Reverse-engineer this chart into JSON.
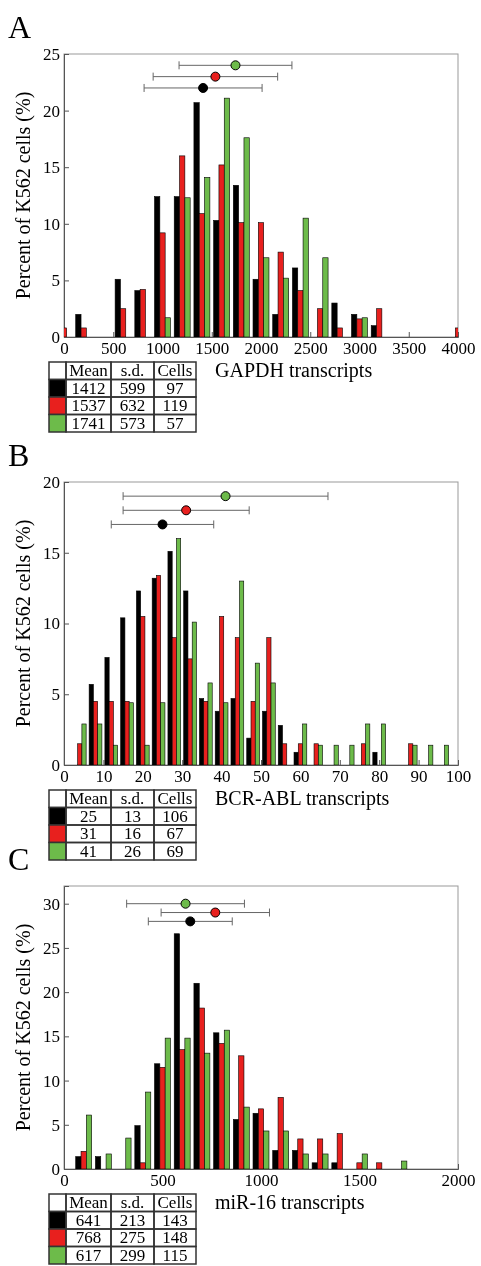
{
  "chart_data": [
    {
      "type": "bar",
      "title": "A",
      "xlabel": "GAPDH transcripts",
      "ylabel": "Percent of K562 cells (%)",
      "xlim": [
        0,
        4000
      ],
      "xticks": [
        0,
        500,
        1000,
        1500,
        2000,
        2500,
        3000,
        3500,
        4000
      ],
      "ylim": [
        0,
        25
      ],
      "yticks": [
        0,
        5,
        10,
        15,
        20,
        25
      ],
      "x": [
        0,
        200,
        400,
        600,
        800,
        1000,
        1200,
        1400,
        1600,
        1800,
        2000,
        2200,
        2400,
        2600,
        2800,
        3000,
        3200,
        3400,
        3600,
        3800,
        4000
      ],
      "series": [
        {
          "color": "#000000",
          "values": [
            null,
            2.0,
            null,
            5.1,
            4.1,
            12.4,
            12.4,
            20.7,
            10.3,
            13.4,
            5.1,
            2.0,
            6.1,
            null,
            3.0,
            2.0,
            1.0,
            null,
            null,
            null,
            null
          ]
        },
        {
          "color": "#e8201e",
          "values": [
            0.8,
            0.8,
            null,
            2.5,
            4.2,
            9.2,
            16.0,
            10.9,
            15.2,
            10.1,
            10.1,
            7.5,
            4.1,
            2.5,
            0.8,
            1.6,
            2.5,
            null,
            null,
            null,
            0.8
          ]
        },
        {
          "color": "#6dbb4a",
          "values": [
            null,
            null,
            null,
            null,
            null,
            1.7,
            12.3,
            14.1,
            21.1,
            17.6,
            7.0,
            5.2,
            10.5,
            7.0,
            null,
            1.7,
            null,
            null,
            null,
            null,
            null
          ]
        },
        {
          "type": "scatter",
          "color": "#000000",
          "x": [
            1412
          ],
          "values": [
            22
          ],
          "xerrors": [
            599
          ]
        },
        {
          "type": "scatter",
          "color": "#e8201e",
          "x": [
            1537
          ],
          "values": [
            23
          ],
          "xerrors": [
            632
          ]
        },
        {
          "type": "scatter",
          "color": "#6dbb4a",
          "x": [
            1741
          ],
          "values": [
            24
          ],
          "xerrors": [
            573
          ]
        }
      ],
      "annotations": [
        "Mean",
        "s.d.",
        "Cells",
        "1412",
        "599",
        "97",
        "1537",
        "632",
        "119",
        "1741",
        "573",
        "57"
      ]
    },
    {
      "type": "bar",
      "title": "B",
      "xlabel": "BCR-ABL transcripts",
      "ylabel": "Percent of K562 cells (%)",
      "xlim": [
        0,
        100
      ],
      "xticks": [
        0,
        10,
        20,
        30,
        40,
        50,
        60,
        70,
        80,
        90,
        100
      ],
      "ylim": [
        0,
        20
      ],
      "yticks": [
        0,
        5,
        10,
        15,
        20
      ],
      "x": [
        4,
        8,
        12,
        16,
        20,
        24,
        28,
        32,
        36,
        40,
        44,
        48,
        52,
        56,
        60,
        64,
        68,
        72,
        76,
        80,
        84,
        88,
        92,
        96
      ],
      "series": [
        {
          "color": "#000000",
          "values": [
            null,
            5.7,
            7.6,
            10.4,
            12.3,
            13.2,
            15.1,
            12.3,
            4.7,
            3.8,
            4.7,
            1.9,
            3.8,
            2.8,
            0.9,
            null,
            null,
            null,
            null,
            0.9,
            null,
            null,
            null,
            null
          ]
        },
        {
          "color": "#e8201e",
          "values": [
            1.5,
            4.5,
            4.5,
            4.5,
            10.5,
            13.4,
            9.0,
            7.5,
            4.5,
            10.5,
            9.0,
            4.5,
            9.0,
            1.5,
            1.5,
            1.5,
            null,
            null,
            1.5,
            null,
            null,
            1.5,
            null,
            null
          ]
        },
        {
          "color": "#6dbb4a",
          "values": [
            2.9,
            2.9,
            1.4,
            4.4,
            1.4,
            4.4,
            16.0,
            10.1,
            5.8,
            4.4,
            13.0,
            7.2,
            5.8,
            null,
            2.9,
            1.4,
            1.4,
            1.4,
            2.9,
            2.9,
            null,
            1.4,
            1.4,
            1.4
          ]
        },
        {
          "type": "scatter",
          "color": "#000000",
          "x": [
            25
          ],
          "values": [
            17
          ],
          "xerrors": [
            13
          ]
        },
        {
          "type": "scatter",
          "color": "#e8201e",
          "x": [
            31
          ],
          "values": [
            18
          ],
          "xerrors": [
            16
          ]
        },
        {
          "type": "scatter",
          "color": "#6dbb4a",
          "x": [
            41
          ],
          "values": [
            19
          ],
          "xerrors": [
            26
          ]
        }
      ],
      "annotations": [
        "Mean",
        "s.d.",
        "Cells",
        "25",
        "13",
        "106",
        "31",
        "16",
        "67",
        "41",
        "26",
        "69"
      ]
    },
    {
      "type": "bar",
      "title": "C",
      "xlabel": "miR-16 transcripts",
      "ylabel": "Percent of K562 cells (%)",
      "xlim": [
        0,
        2000
      ],
      "xticks": [
        0,
        500,
        1000,
        1500,
        2000
      ],
      "ylim": [
        0,
        32
      ],
      "yticks": [
        0,
        5,
        10,
        15,
        20,
        25,
        30
      ],
      "x": [
        100,
        200,
        300,
        400,
        500,
        600,
        700,
        800,
        900,
        1000,
        1100,
        1200,
        1300,
        1400,
        1500,
        1600,
        1700
      ],
      "series": [
        {
          "color": "#000000",
          "values": [
            1.4,
            1.4,
            null,
            4.9,
            11.9,
            26.6,
            21.0,
            15.4,
            5.6,
            6.3,
            2.1,
            2.1,
            0.7,
            0.7,
            null,
            null,
            null
          ]
        },
        {
          "color": "#e8201e",
          "values": [
            2.0,
            null,
            null,
            0.7,
            11.5,
            13.5,
            18.2,
            14.2,
            12.8,
            6.8,
            8.1,
            3.4,
            3.4,
            4.0,
            0.7,
            0.7,
            null
          ]
        },
        {
          "color": "#6dbb4a",
          "values": [
            6.1,
            1.7,
            3.5,
            8.7,
            14.8,
            14.8,
            13.1,
            15.7,
            7.0,
            4.3,
            4.3,
            1.7,
            1.7,
            null,
            1.7,
            null,
            0.9
          ]
        },
        {
          "type": "scatter",
          "color": "#000000",
          "x": [
            641
          ],
          "values": [
            28
          ],
          "xerrors": [
            213
          ]
        },
        {
          "type": "scatter",
          "color": "#e8201e",
          "x": [
            768
          ],
          "values": [
            29
          ],
          "xerrors": [
            275
          ]
        },
        {
          "type": "scatter",
          "color": "#6dbb4a",
          "x": [
            617
          ],
          "values": [
            30
          ],
          "xerrors": [
            299
          ]
        }
      ],
      "annotations": [
        "Mean",
        "s.d.",
        "Cells",
        "641",
        "213",
        "143",
        "768",
        "275",
        "148",
        "617",
        "299",
        "115"
      ]
    }
  ]
}
